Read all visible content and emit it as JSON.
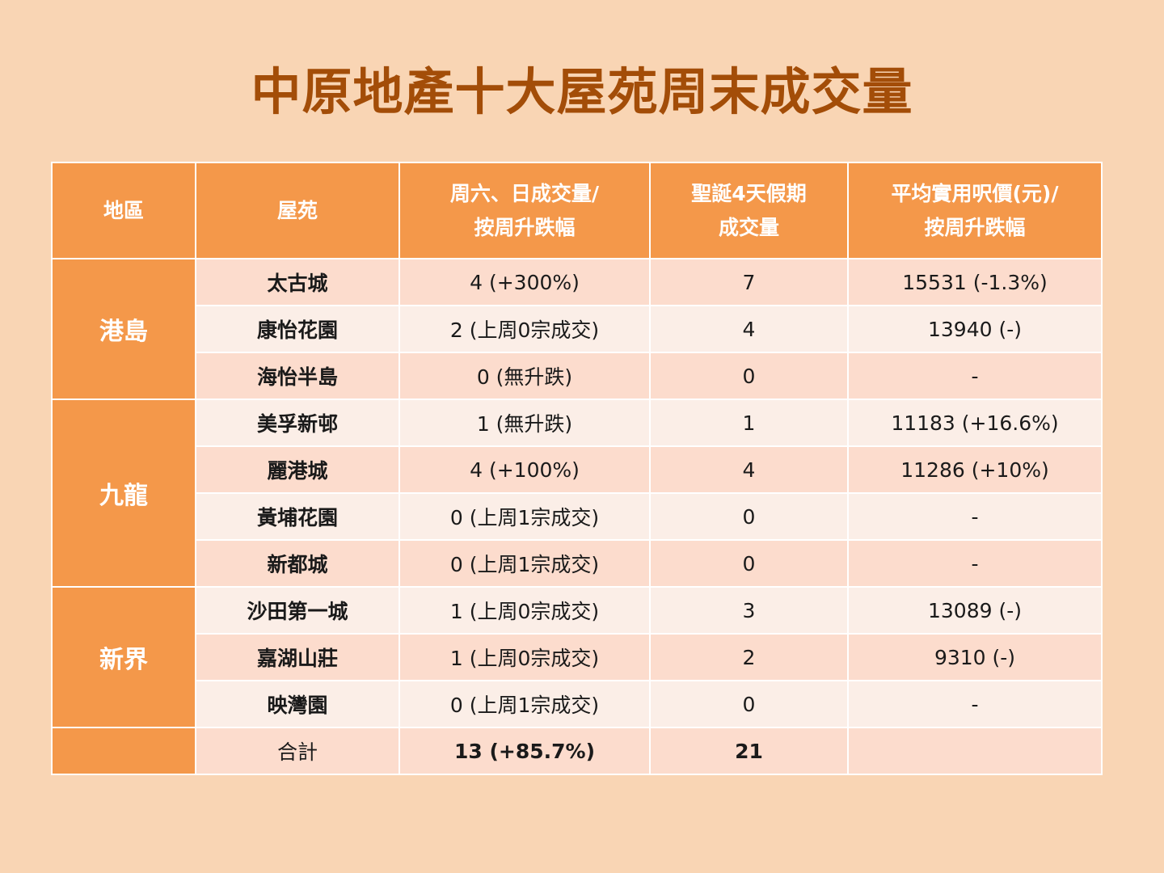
{
  "title": "中原地產十大屋苑周末成交量",
  "headers": {
    "region": "地區",
    "estate": "屋苑",
    "weekend_line1": "周六、日成交量/",
    "weekend_line2": "按周升跌幅",
    "holiday_line1": "聖誕4天假期",
    "holiday_line2": "成交量",
    "price_line1": "平均實用呎價(元)/",
    "price_line2": "按周升跌幅"
  },
  "regions": {
    "hk_island": "港島",
    "kowloon": "九龍",
    "nt": "新界"
  },
  "rows": [
    {
      "estate": "太古城",
      "weekend": "4 (+300%)",
      "holiday": "7",
      "price": "15531 (-1.3%)"
    },
    {
      "estate": "康怡花園",
      "weekend": "2 (上周0宗成交)",
      "holiday": "4",
      "price": "13940 (-)"
    },
    {
      "estate": "海怡半島",
      "weekend": "0 (無升跌)",
      "holiday": "0",
      "price": "-"
    },
    {
      "estate": "美孚新邨",
      "weekend": "1 (無升跌)",
      "holiday": "1",
      "price": "11183 (+16.6%)"
    },
    {
      "estate": "麗港城",
      "weekend": "4 (+100%)",
      "holiday": "4",
      "price": "11286 (+10%)"
    },
    {
      "estate": "黃埔花園",
      "weekend": "0 (上周1宗成交)",
      "holiday": "0",
      "price": "-"
    },
    {
      "estate": "新都城",
      "weekend": "0 (上周1宗成交)",
      "holiday": "0",
      "price": "-"
    },
    {
      "estate": "沙田第一城",
      "weekend": "1 (上周0宗成交)",
      "holiday": "3",
      "price": "13089 (-)"
    },
    {
      "estate": "嘉湖山莊",
      "weekend": "1 (上周0宗成交)",
      "holiday": "2",
      "price": "9310 (-)"
    },
    {
      "estate": "映灣園",
      "weekend": "0 (上周1宗成交)",
      "holiday": "0",
      "price": "-"
    }
  ],
  "total": {
    "label": "合計",
    "weekend": "13 (+85.7%)",
    "holiday": "21",
    "price": ""
  }
}
